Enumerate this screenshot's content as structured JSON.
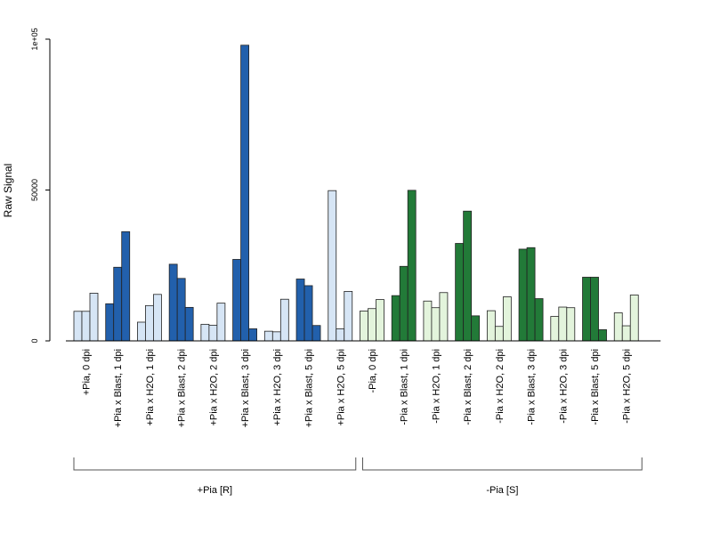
{
  "chart_data": {
    "type": "bar",
    "title": "",
    "ylabel": "Raw Signal",
    "xlabel": "",
    "ylim": [
      0,
      100000
    ],
    "yticks": [
      {
        "value": 0,
        "label": "0"
      },
      {
        "value": 50000,
        "label": "50000"
      },
      {
        "value": 100000,
        "label": "1e+05"
      }
    ],
    "colors": {
      "blue_dark": "#2260ac",
      "blue_light": "#d6e5f5",
      "green_dark": "#227a38",
      "green_light": "#e3f4dc"
    },
    "categories": [
      {
        "label": "+Pia, 0 dpi",
        "values": [
          9800,
          9800,
          15800
        ],
        "color": "#d6e5f5"
      },
      {
        "label": "+Pia x Blast, 1 dpi",
        "values": [
          12300,
          24400,
          36200
        ],
        "color": "#2260ac"
      },
      {
        "label": "+Pia x H2O, 1 dpi",
        "values": [
          6200,
          11700,
          15400
        ],
        "color": "#d6e5f5"
      },
      {
        "label": "+Pia x Blast, 2 dpi",
        "values": [
          25400,
          20700,
          11100
        ],
        "color": "#2260ac"
      },
      {
        "label": "+Pia x H2O, 2 dpi",
        "values": [
          5500,
          5200,
          12500
        ],
        "color": "#d6e5f5"
      },
      {
        "label": "+Pia x Blast, 3 dpi",
        "values": [
          27000,
          98000,
          4000
        ],
        "color": "#2260ac"
      },
      {
        "label": "+Pia x H2O, 3 dpi",
        "values": [
          3200,
          3000,
          13800
        ],
        "color": "#d6e5f5"
      },
      {
        "label": "+Pia x Blast, 5 dpi",
        "values": [
          20500,
          18300,
          5100
        ],
        "color": "#2260ac"
      },
      {
        "label": "+Pia x H2O, 5 dpi",
        "values": [
          49800,
          4000,
          16400
        ],
        "color": "#d6e5f5"
      },
      {
        "label": "-Pia, 0 dpi",
        "values": [
          9900,
          10700,
          13700
        ],
        "color": "#e3f4dc"
      },
      {
        "label": "-Pia x Blast, 1 dpi",
        "values": [
          15000,
          24700,
          49900
        ],
        "color": "#227a38"
      },
      {
        "label": "-Pia x H2O, 1 dpi",
        "values": [
          13200,
          11000,
          16000
        ],
        "color": "#e3f4dc"
      },
      {
        "label": "-Pia x Blast, 2 dpi",
        "values": [
          32300,
          43000,
          8300
        ],
        "color": "#227a38"
      },
      {
        "label": "-Pia x H2O, 2 dpi",
        "values": [
          10000,
          4800,
          14600
        ],
        "color": "#e3f4dc"
      },
      {
        "label": "-Pia x Blast, 3 dpi",
        "values": [
          30400,
          30900,
          14000
        ],
        "color": "#227a38"
      },
      {
        "label": "-Pia x H2O, 3 dpi",
        "values": [
          8100,
          11200,
          11000
        ],
        "color": "#e3f4dc"
      },
      {
        "label": "-Pia x Blast, 5 dpi",
        "values": [
          21100,
          21100,
          3700
        ],
        "color": "#227a38"
      },
      {
        "label": "-Pia x H2O, 5 dpi",
        "values": [
          9300,
          5000,
          15200
        ],
        "color": "#e3f4dc"
      }
    ],
    "groups": [
      {
        "label": "+Pia [R]",
        "first": 0,
        "last": 8
      },
      {
        "label": "-Pia [S]",
        "first": 9,
        "last": 17
      }
    ],
    "grid": false,
    "legend": "none"
  }
}
